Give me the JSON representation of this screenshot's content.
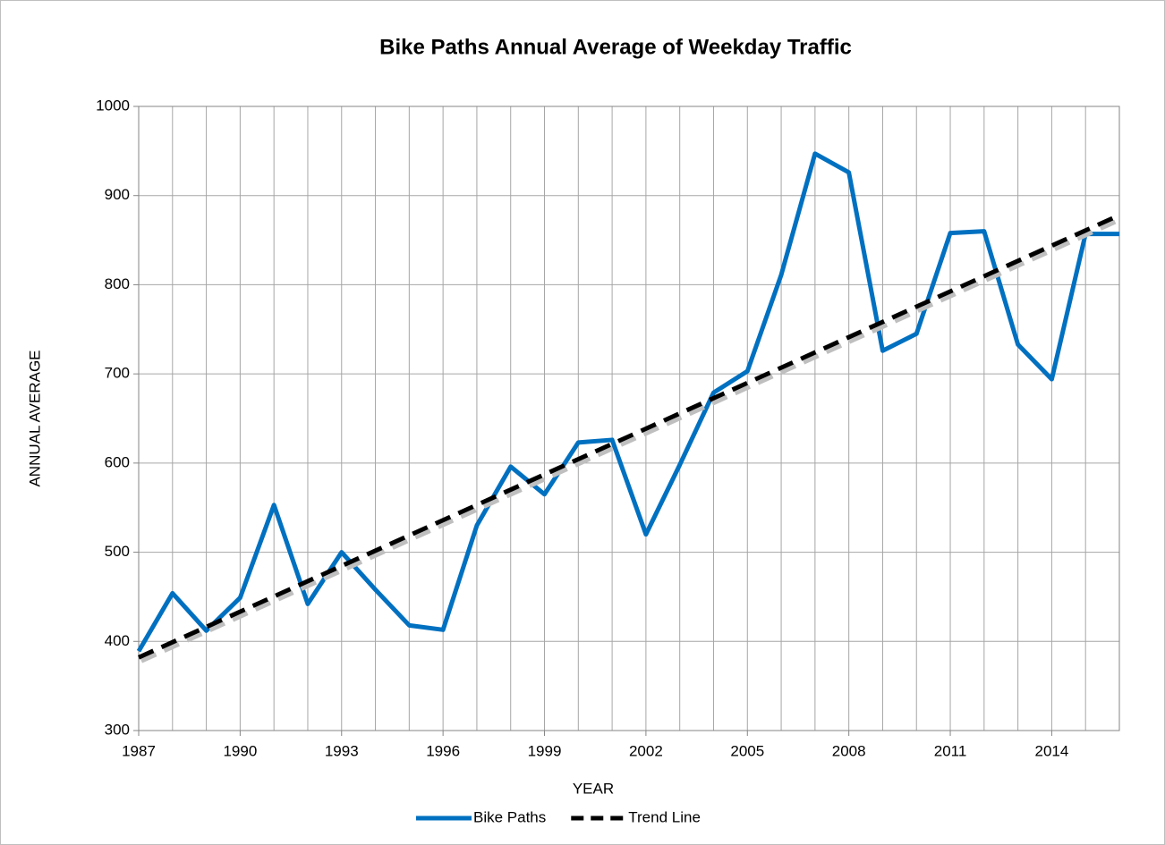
{
  "chart_data": {
    "type": "line",
    "title": "Bike Paths  Annual Average of Weekday Traffic",
    "x_label": "YEAR",
    "y_label": "ANNUAL AVERAGE",
    "x": [
      1987,
      1988,
      1989,
      1990,
      1991,
      1992,
      1993,
      1994,
      1995,
      1996,
      1997,
      1998,
      1999,
      2000,
      2001,
      2002,
      2003,
      2004,
      2005,
      2006,
      2007,
      2008,
      2009,
      2010,
      2011,
      2012,
      2013,
      2014,
      2015,
      2016
    ],
    "series": [
      {
        "name": "Bike Paths",
        "color": "#0070c0",
        "style": "solid",
        "values": [
          389,
          454,
          412,
          449,
          553,
          442,
          500,
          458,
          418,
          413,
          530,
          596,
          565,
          623,
          626,
          520,
          598,
          679,
          703,
          811,
          947,
          926,
          726,
          745,
          858,
          860,
          733,
          694,
          857,
          857
        ]
      },
      {
        "name": "Trend Line",
        "color": "#000000",
        "style": "dashed",
        "x": [
          1987,
          2016
        ],
        "values": [
          382,
          878
        ]
      }
    ],
    "xlim": [
      1987,
      2016
    ],
    "xticks": [
      1987,
      1990,
      1993,
      1996,
      1999,
      2002,
      2005,
      2008,
      2011,
      2014
    ],
    "ylim": [
      300,
      1000
    ],
    "yticks": [
      300,
      400,
      500,
      600,
      700,
      800,
      900,
      1000
    ],
    "grid": true,
    "legend": "bottom"
  }
}
